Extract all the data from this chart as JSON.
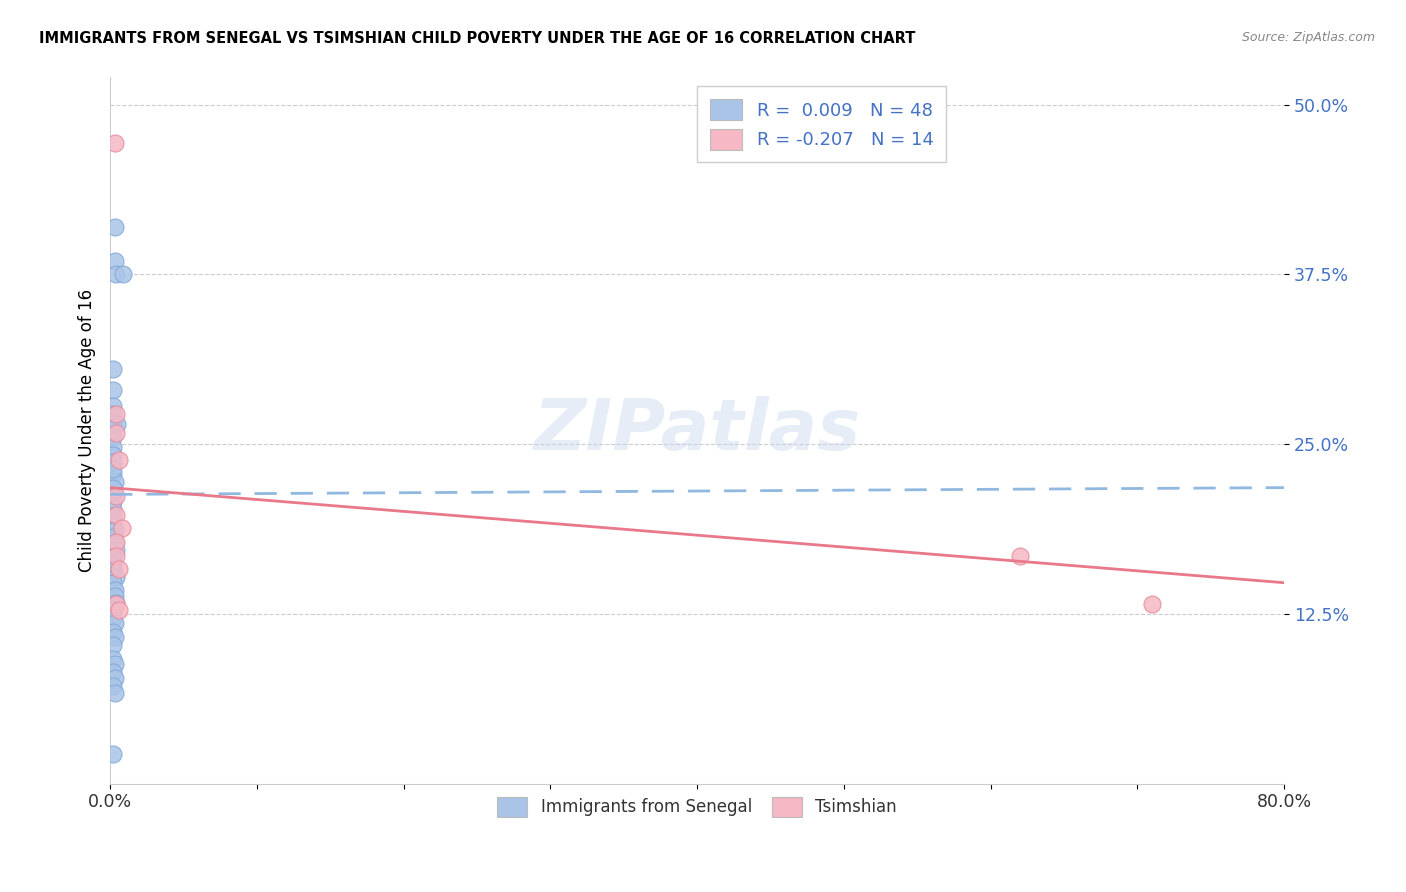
{
  "title": "IMMIGRANTS FROM SENEGAL VS TSIMSHIAN CHILD POVERTY UNDER THE AGE OF 16 CORRELATION CHART",
  "source": "Source: ZipAtlas.com",
  "ylabel": "Child Poverty Under the Age of 16",
  "xlim": [
    0.0,
    0.8
  ],
  "ylim": [
    0.0,
    0.52
  ],
  "yticks": [
    0.125,
    0.25,
    0.375,
    0.5
  ],
  "ytick_labels": [
    "12.5%",
    "25.0%",
    "37.5%",
    "50.0%"
  ],
  "xticks": [
    0.0,
    0.1,
    0.2,
    0.3,
    0.4,
    0.5,
    0.6,
    0.7,
    0.8
  ],
  "xtick_labels": [
    "0.0%",
    "",
    "",
    "",
    "",
    "",
    "",
    "",
    "80.0%"
  ],
  "legend_line1": "R =  0.009   N = 48",
  "legend_line2": "R = -0.207   N = 14",
  "blue_color": "#aac4e8",
  "pink_color": "#f5b8c4",
  "blue_edge": "#7fa8d4",
  "pink_edge": "#e88898",
  "pink_line_color": "#e8788a",
  "blue_dashed_color": "#90b8e0",
  "watermark": "ZIPatlas",
  "blue_scatter": [
    [
      0.003,
      0.41
    ],
    [
      0.003,
      0.385
    ],
    [
      0.004,
      0.375
    ],
    [
      0.009,
      0.375
    ],
    [
      0.002,
      0.305
    ],
    [
      0.002,
      0.29
    ],
    [
      0.002,
      0.278
    ],
    [
      0.002,
      0.272
    ],
    [
      0.002,
      0.265
    ],
    [
      0.005,
      0.265
    ],
    [
      0.002,
      0.255
    ],
    [
      0.002,
      0.248
    ],
    [
      0.002,
      0.242
    ],
    [
      0.002,
      0.237
    ],
    [
      0.002,
      0.228
    ],
    [
      0.003,
      0.222
    ],
    [
      0.002,
      0.218
    ],
    [
      0.002,
      0.212
    ],
    [
      0.002,
      0.208
    ],
    [
      0.002,
      0.202
    ],
    [
      0.002,
      0.197
    ],
    [
      0.002,
      0.192
    ],
    [
      0.003,
      0.187
    ],
    [
      0.002,
      0.182
    ],
    [
      0.003,
      0.177
    ],
    [
      0.004,
      0.172
    ],
    [
      0.002,
      0.167
    ],
    [
      0.002,
      0.162
    ],
    [
      0.002,
      0.157
    ],
    [
      0.004,
      0.152
    ],
    [
      0.002,
      0.148
    ],
    [
      0.003,
      0.143
    ],
    [
      0.003,
      0.138
    ],
    [
      0.004,
      0.133
    ],
    [
      0.002,
      0.128
    ],
    [
      0.002,
      0.122
    ],
    [
      0.003,
      0.118
    ],
    [
      0.002,
      0.112
    ],
    [
      0.003,
      0.108
    ],
    [
      0.002,
      0.102
    ],
    [
      0.002,
      0.092
    ],
    [
      0.003,
      0.088
    ],
    [
      0.002,
      0.082
    ],
    [
      0.003,
      0.078
    ],
    [
      0.002,
      0.072
    ],
    [
      0.003,
      0.067
    ],
    [
      0.002,
      0.022
    ],
    [
      0.002,
      0.232
    ]
  ],
  "pink_scatter": [
    [
      0.003,
      0.472
    ],
    [
      0.004,
      0.272
    ],
    [
      0.004,
      0.258
    ],
    [
      0.006,
      0.238
    ],
    [
      0.004,
      0.212
    ],
    [
      0.004,
      0.198
    ],
    [
      0.008,
      0.188
    ],
    [
      0.004,
      0.178
    ],
    [
      0.004,
      0.168
    ],
    [
      0.006,
      0.158
    ],
    [
      0.004,
      0.132
    ],
    [
      0.006,
      0.128
    ],
    [
      0.62,
      0.168
    ],
    [
      0.71,
      0.132
    ]
  ],
  "blue_trend_x": [
    0.0,
    0.8
  ],
  "blue_trend_y": [
    0.213,
    0.218
  ],
  "pink_trend_x": [
    0.0,
    0.8
  ],
  "pink_trend_y": [
    0.218,
    0.148
  ]
}
